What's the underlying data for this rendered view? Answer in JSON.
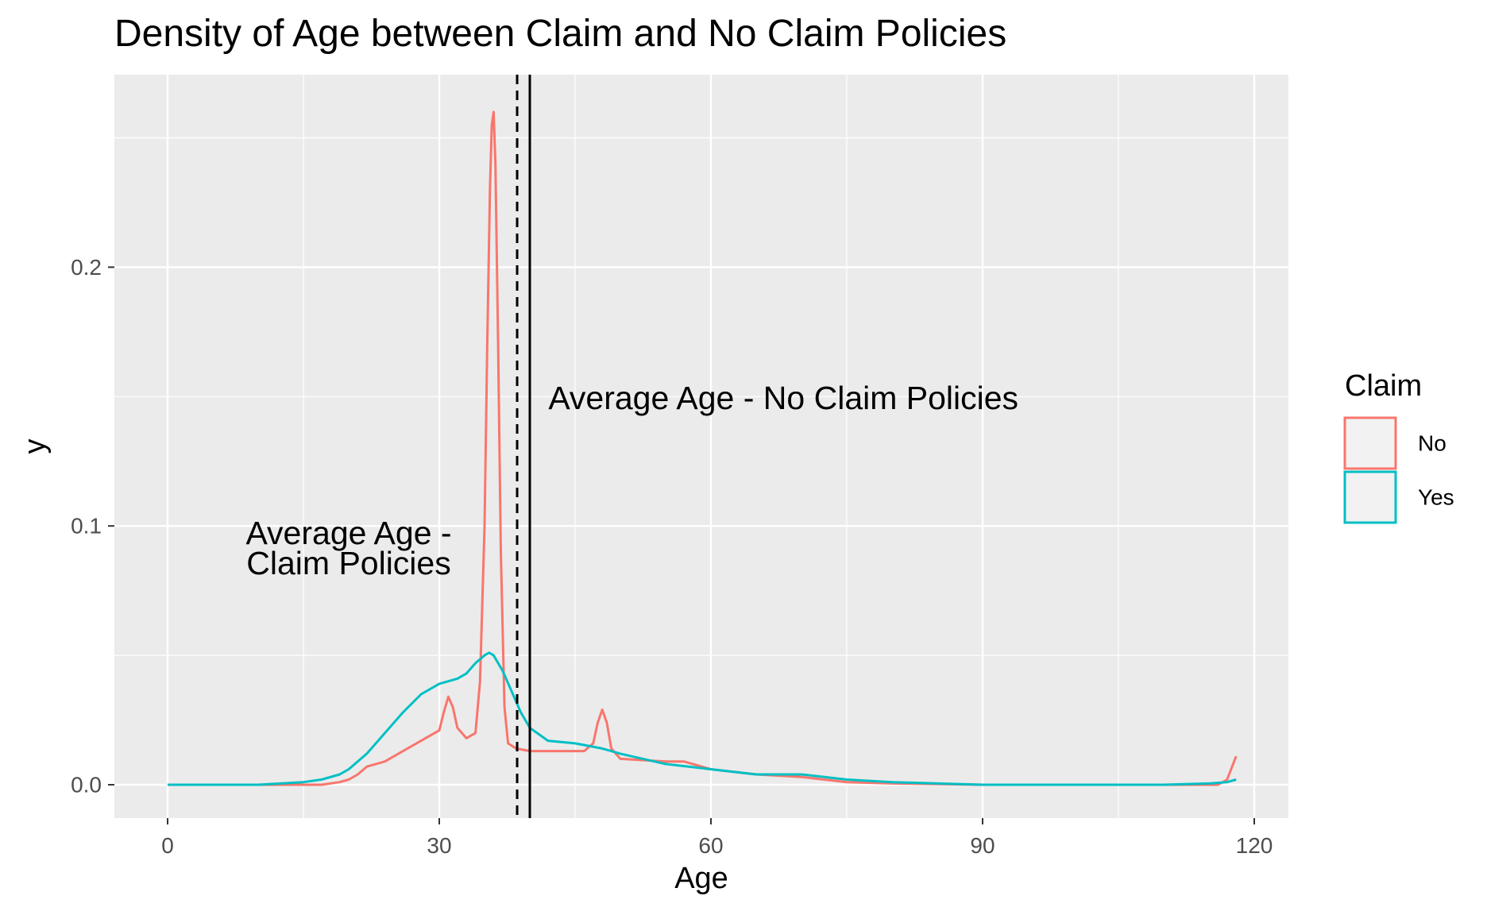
{
  "chart_data": {
    "type": "line",
    "title": "Density of Age between Claim and No Claim Policies",
    "xlabel": "Age",
    "ylabel": "y",
    "xlim": [
      -10,
      123
    ],
    "ylim": [
      -0.013,
      0.265
    ],
    "x_ticks": [
      0,
      30,
      60,
      90,
      120
    ],
    "x_tick_labels": [
      "0",
      "30",
      "60",
      "90",
      "120"
    ],
    "y_ticks": [
      0.0,
      0.1,
      0.2
    ],
    "y_tick_labels": [
      "0.0",
      "0.1",
      "0.2"
    ],
    "grid": true,
    "legend": {
      "title": "Claim",
      "position": "right",
      "entries": [
        {
          "label": "No",
          "color": "#F8766D"
        },
        {
          "label": "Yes",
          "color": "#00BFC4"
        }
      ]
    },
    "series": [
      {
        "name": "No",
        "color": "#F8766D",
        "points": [
          [
            0,
            0
          ],
          [
            5,
            0
          ],
          [
            10,
            0
          ],
          [
            15,
            0
          ],
          [
            17,
            0
          ],
          [
            19,
            0.001
          ],
          [
            20,
            0.002
          ],
          [
            21,
            0.004
          ],
          [
            22,
            0.007
          ],
          [
            24,
            0.009
          ],
          [
            26,
            0.013
          ],
          [
            28,
            0.017
          ],
          [
            29,
            0.019
          ],
          [
            30,
            0.021
          ],
          [
            30.5,
            0.028
          ],
          [
            31,
            0.034
          ],
          [
            31.5,
            0.03
          ],
          [
            32,
            0.022
          ],
          [
            33,
            0.018
          ],
          [
            34,
            0.02
          ],
          [
            34.5,
            0.04
          ],
          [
            35,
            0.1
          ],
          [
            35.3,
            0.17
          ],
          [
            35.6,
            0.23
          ],
          [
            35.8,
            0.255
          ],
          [
            36,
            0.26
          ],
          [
            36.2,
            0.24
          ],
          [
            36.5,
            0.17
          ],
          [
            36.8,
            0.09
          ],
          [
            37.2,
            0.03
          ],
          [
            37.6,
            0.016
          ],
          [
            38.5,
            0.014
          ],
          [
            40,
            0.013
          ],
          [
            45,
            0.013
          ],
          [
            46,
            0.013
          ],
          [
            47,
            0.016
          ],
          [
            47.5,
            0.024
          ],
          [
            48,
            0.029
          ],
          [
            48.5,
            0.024
          ],
          [
            49,
            0.014
          ],
          [
            50,
            0.01
          ],
          [
            55,
            0.009
          ],
          [
            57,
            0.009
          ],
          [
            60,
            0.006
          ],
          [
            65,
            0.004
          ],
          [
            70,
            0.003
          ],
          [
            75,
            0.001
          ],
          [
            80,
            0.0005
          ],
          [
            90,
            0
          ],
          [
            100,
            0
          ],
          [
            110,
            0
          ],
          [
            116,
            0
          ],
          [
            117,
            0.002
          ],
          [
            118,
            0.011
          ]
        ]
      },
      {
        "name": "Yes",
        "color": "#00BFC4",
        "points": [
          [
            0,
            0
          ],
          [
            5,
            0
          ],
          [
            10,
            0
          ],
          [
            15,
            0.001
          ],
          [
            17,
            0.002
          ],
          [
            19,
            0.004
          ],
          [
            20,
            0.006
          ],
          [
            22,
            0.012
          ],
          [
            24,
            0.02
          ],
          [
            26,
            0.028
          ],
          [
            28,
            0.035
          ],
          [
            30,
            0.039
          ],
          [
            32,
            0.041
          ],
          [
            33,
            0.043
          ],
          [
            34,
            0.047
          ],
          [
            35,
            0.05
          ],
          [
            35.5,
            0.051
          ],
          [
            36,
            0.05
          ],
          [
            37,
            0.044
          ],
          [
            38,
            0.036
          ],
          [
            39,
            0.028
          ],
          [
            40,
            0.022
          ],
          [
            42,
            0.017
          ],
          [
            45,
            0.016
          ],
          [
            48,
            0.014
          ],
          [
            50,
            0.012
          ],
          [
            55,
            0.008
          ],
          [
            60,
            0.006
          ],
          [
            65,
            0.004
          ],
          [
            70,
            0.004
          ],
          [
            75,
            0.002
          ],
          [
            80,
            0.001
          ],
          [
            85,
            0.0005
          ],
          [
            90,
            0
          ],
          [
            100,
            0
          ],
          [
            110,
            0
          ],
          [
            115,
            0.0005
          ],
          [
            117,
            0.001
          ],
          [
            118,
            0.002
          ]
        ]
      }
    ],
    "vlines": [
      {
        "x": 38.6,
        "style": "dashed",
        "color": "#000000"
      },
      {
        "x": 40.0,
        "style": "solid",
        "color": "#000000"
      }
    ],
    "annotations": [
      {
        "text_lines": [
          "Average Age -",
          "Claim Policies"
        ],
        "x": 20,
        "y": 0.0915
      },
      {
        "text_lines": [
          "Average Age - No Claim Policies"
        ],
        "x": 68,
        "y": 0.1495
      }
    ]
  }
}
